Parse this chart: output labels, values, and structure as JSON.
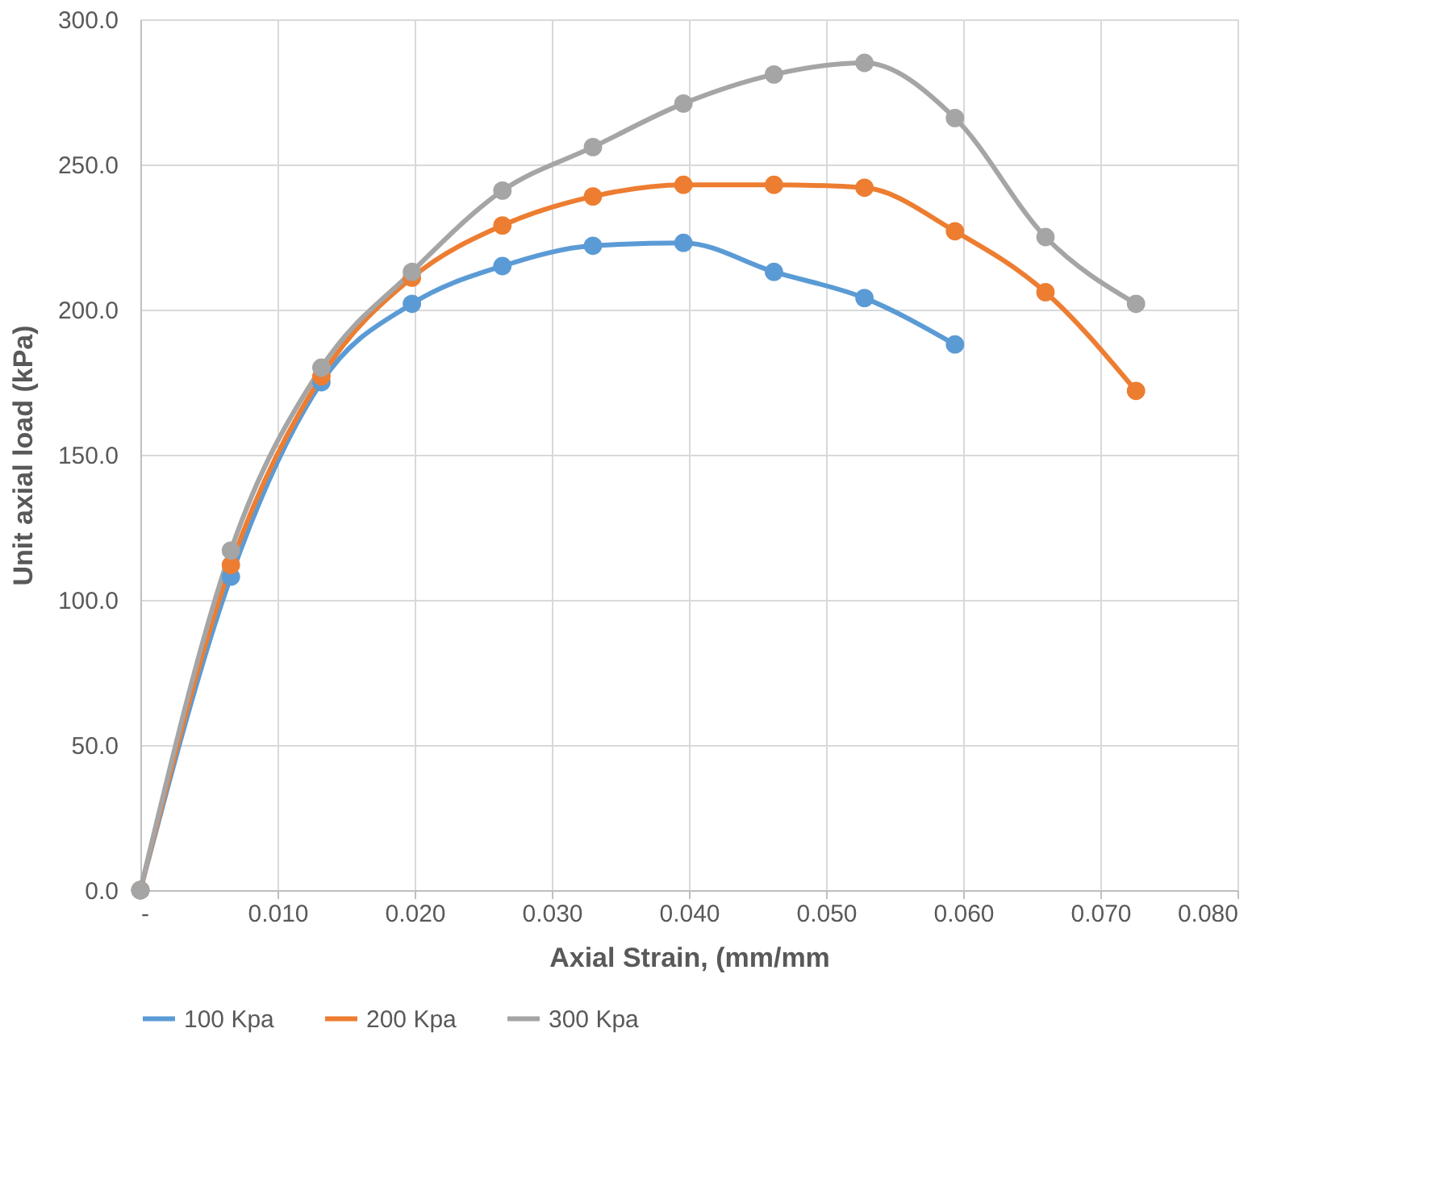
{
  "chart_data": {
    "type": "line",
    "xlabel": "Axial Strain, (mm/mm",
    "ylabel": "Unit axial load (kPa)",
    "x": [
      0,
      0.0066,
      0.0132,
      0.0198,
      0.0264,
      0.033,
      0.0396,
      0.0462,
      0.0528,
      0.0594,
      0.066,
      0.0726
    ],
    "series": [
      {
        "name": "100 Kpa",
        "color": "#5b9bd5",
        "values": [
          0,
          108,
          175,
          202,
          215,
          222,
          223,
          213,
          204,
          188,
          null,
          null
        ]
      },
      {
        "name": "200 Kpa",
        "color": "#ed7d31",
        "values": [
          0,
          112,
          177,
          211,
          229,
          239,
          243,
          243,
          242,
          227,
          206,
          172
        ]
      },
      {
        "name": "300 Kpa",
        "color": "#a5a5a5",
        "values": [
          0,
          117,
          180,
          213,
          241,
          256,
          271,
          281,
          285,
          266,
          225,
          202
        ]
      }
    ],
    "xlim": [
      0,
      0.08
    ],
    "xticks": [
      {
        "value": 0,
        "label": "-"
      },
      {
        "value": 0.01,
        "label": "0.010"
      },
      {
        "value": 0.02,
        "label": "0.020"
      },
      {
        "value": 0.03,
        "label": "0.030"
      },
      {
        "value": 0.04,
        "label": "0.040"
      },
      {
        "value": 0.05,
        "label": "0.050"
      },
      {
        "value": 0.06,
        "label": "0.060"
      },
      {
        "value": 0.07,
        "label": "0.070"
      },
      {
        "value": 0.08,
        "label": "0.080"
      }
    ],
    "ylim": [
      0,
      300
    ],
    "yticks": [
      {
        "value": 0,
        "label": "0.0"
      },
      {
        "value": 50,
        "label": "50.0"
      },
      {
        "value": 100,
        "label": "100.0"
      },
      {
        "value": 150,
        "label": "150.0"
      },
      {
        "value": 200,
        "label": "200.0"
      },
      {
        "value": 250,
        "label": "250.0"
      },
      {
        "value": 300,
        "label": "300.0"
      }
    ],
    "grid": true,
    "legend": "bottom",
    "marker": "circle",
    "line_style": "solid"
  }
}
